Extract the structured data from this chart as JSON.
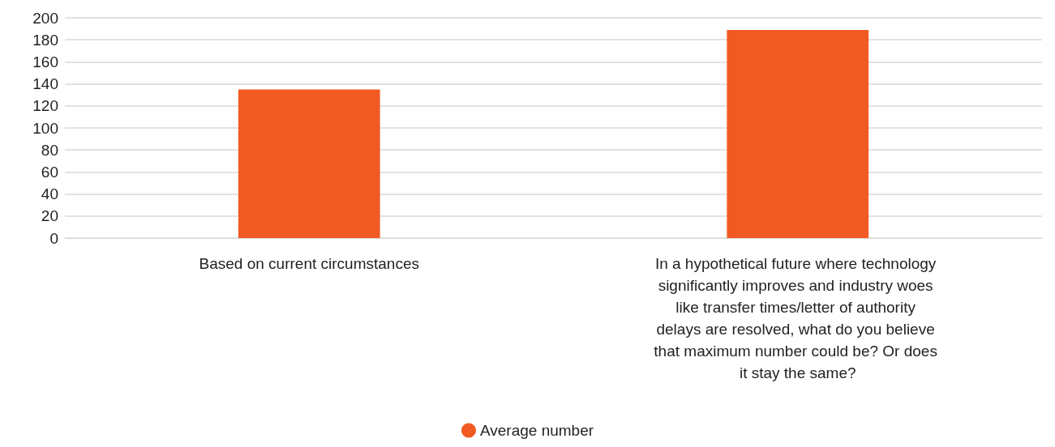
{
  "chart_data": {
    "type": "bar",
    "categories": [
      "Based on current circumstances",
      "In a hypothetical future where technology significantly improves and industry woes like transfer times/letter of authority delays are resolved, what do you believe that maximum number could be? Or does it stay the same?"
    ],
    "series": [
      {
        "name": "Average number",
        "color": "#f15a22",
        "values": [
          135,
          189
        ]
      }
    ],
    "ylim": [
      0,
      200
    ],
    "yticks": [
      0,
      20,
      40,
      60,
      80,
      100,
      120,
      140,
      160,
      180,
      200
    ],
    "grid": "y",
    "legend": "bottom"
  }
}
